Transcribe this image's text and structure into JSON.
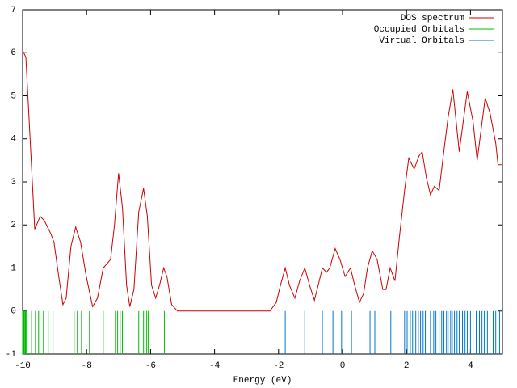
{
  "chart_data": {
    "type": "line",
    "xlabel": "Energy (eV)",
    "xlim": [
      -10,
      5
    ],
    "ylim": [
      -1,
      7
    ],
    "xticks": [
      -10,
      -8,
      -6,
      -4,
      -2,
      0,
      2,
      4
    ],
    "yticks": [
      -1,
      0,
      1,
      2,
      3,
      4,
      5,
      6,
      7
    ],
    "legend": "top-right",
    "series": [
      {
        "name": "DOS spectrum",
        "color": "#cc0000",
        "style": "line",
        "x": [
          -10,
          -9.9,
          -9.8,
          -9.62,
          -9.45,
          -9.32,
          -9.12,
          -9.02,
          -8.87,
          -8.74,
          -8.64,
          -8.49,
          -8.34,
          -8.19,
          -8.01,
          -7.81,
          -7.66,
          -7.48,
          -7.36,
          -7.25,
          -7.13,
          -7.0,
          -6.88,
          -6.75,
          -6.65,
          -6.52,
          -6.37,
          -6.22,
          -6.1,
          -5.97,
          -5.84,
          -5.72,
          -5.59,
          -5.49,
          -5.34,
          -5.16,
          -2.27,
          -2.07,
          -1.94,
          -1.79,
          -1.66,
          -1.49,
          -1.34,
          -1.18,
          -1.03,
          -0.88,
          -0.76,
          -0.63,
          -0.5,
          -0.4,
          -0.23,
          -0.08,
          0.08,
          0.25,
          0.38,
          0.53,
          0.66,
          0.78,
          0.93,
          1.08,
          1.26,
          1.36,
          1.49,
          1.64,
          1.79,
          1.94,
          2.07,
          2.24,
          2.39,
          2.49,
          2.62,
          2.75,
          2.87,
          3.02,
          3.15,
          3.3,
          3.45,
          3.65,
          3.9,
          4.08,
          4.21,
          4.46,
          4.61,
          4.79,
          4.86,
          4.97
        ],
        "values": [
          6.05,
          5.9,
          4.5,
          1.9,
          2.2,
          2.1,
          1.8,
          1.6,
          0.8,
          0.15,
          0.3,
          1.5,
          1.95,
          1.6,
          0.8,
          0.1,
          0.3,
          1.0,
          1.1,
          1.2,
          2.0,
          3.2,
          2.4,
          0.6,
          0.1,
          0.5,
          2.3,
          2.85,
          2.2,
          0.6,
          0.3,
          0.6,
          1.0,
          0.8,
          0.15,
          0,
          0,
          0.2,
          0.6,
          1.0,
          0.6,
          0.3,
          0.7,
          1.0,
          0.6,
          0.25,
          0.6,
          1.0,
          0.9,
          1.0,
          1.45,
          1.2,
          0.8,
          1.0,
          0.6,
          0.2,
          0.4,
          1.0,
          1.4,
          1.2,
          0.5,
          0.5,
          1.0,
          0.7,
          1.8,
          2.8,
          3.55,
          3.3,
          3.6,
          3.7,
          3.1,
          2.7,
          2.9,
          2.8,
          3.6,
          4.5,
          5.15,
          3.7,
          5.1,
          4.4,
          3.5,
          4.95,
          4.6,
          3.9,
          3.4,
          3.4
        ]
      },
      {
        "name": "Occupied Orbitals",
        "color": "#00bb00",
        "style": "impulse",
        "x": [
          -10,
          -9.97,
          -9.95,
          -9.92,
          -9.9,
          -9.87,
          -9.72,
          -9.6,
          -9.5,
          -9.35,
          -9.2,
          -9.05,
          -8.39,
          -8.29,
          -8.16,
          -7.91,
          -7.48,
          -7.1,
          -7.03,
          -6.95,
          -6.88,
          -6.37,
          -6.3,
          -6.22,
          -6.12,
          -6.07,
          -5.57
        ],
        "values": [
          0,
          0,
          0,
          0,
          0,
          0,
          0,
          0,
          0,
          0,
          0,
          0,
          0,
          0,
          0,
          0,
          0,
          0,
          0,
          0,
          0,
          0,
          0,
          0,
          0,
          0,
          0
        ]
      },
      {
        "name": "Virtual Orbitals",
        "color": "#0077cc",
        "style": "impulse",
        "x": [
          -1.79,
          -1.18,
          -0.63,
          -0.3,
          -0.03,
          0.28,
          0.86,
          1.01,
          1.51,
          1.94,
          2.02,
          2.12,
          2.19,
          2.29,
          2.37,
          2.44,
          2.52,
          2.59,
          2.75,
          2.85,
          2.92,
          3.02,
          3.1,
          3.17,
          3.25,
          3.3,
          3.38,
          3.43,
          3.5,
          3.58,
          3.65,
          3.75,
          3.83,
          3.9,
          4.0,
          4.08,
          4.18,
          4.28,
          4.36,
          4.43,
          4.53,
          4.61,
          4.71,
          4.79,
          4.86,
          4.91
        ],
        "values": [
          0,
          0,
          0,
          0,
          0,
          0,
          0,
          0,
          0,
          0,
          0,
          0,
          0,
          0,
          0,
          0,
          0,
          0,
          0,
          0,
          0,
          0,
          0,
          0,
          0,
          0,
          0,
          0,
          0,
          0,
          0,
          0,
          0,
          0,
          0,
          0,
          0,
          0,
          0,
          0,
          0,
          0,
          0,
          0,
          0,
          0
        ]
      }
    ]
  }
}
